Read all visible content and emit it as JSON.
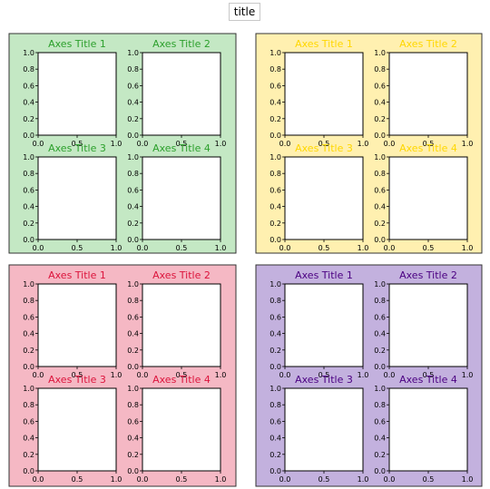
{
  "figure_title": "title",
  "chart_data": [
    {
      "type": "empty-axes-grid",
      "panel": "top-left",
      "background_color": "#c4e8c4",
      "title_color": "#2ca02c",
      "axes": [
        {
          "title": "Axes Title 1",
          "xlim": [
            0.0,
            1.0
          ],
          "ylim": [
            0.0,
            1.0
          ],
          "xticks": [
            "0.0",
            "0.5",
            "1.0"
          ],
          "yticks": [
            "0.0",
            "0.2",
            "0.4",
            "0.6",
            "0.8",
            "1.0"
          ]
        },
        {
          "title": "Axes Title 2",
          "xlim": [
            0.0,
            1.0
          ],
          "ylim": [
            0.0,
            1.0
          ],
          "xticks": [
            "0.0",
            "0.5",
            "1.0"
          ],
          "yticks": [
            "0.0",
            "0.2",
            "0.4",
            "0.6",
            "0.8",
            "1.0"
          ]
        },
        {
          "title": "Axes Title 3",
          "xlim": [
            0.0,
            1.0
          ],
          "ylim": [
            0.0,
            1.0
          ],
          "xticks": [
            "0.0",
            "0.5",
            "1.0"
          ],
          "yticks": [
            "0.0",
            "0.2",
            "0.4",
            "0.6",
            "0.8",
            "1.0"
          ]
        },
        {
          "title": "Axes Title 4",
          "xlim": [
            0.0,
            1.0
          ],
          "ylim": [
            0.0,
            1.0
          ],
          "xticks": [
            "0.0",
            "0.5",
            "1.0"
          ],
          "yticks": [
            "0.0",
            "0.2",
            "0.4",
            "0.6",
            "0.8",
            "1.0"
          ]
        }
      ]
    },
    {
      "type": "empty-axes-grid",
      "panel": "top-right",
      "background_color": "#fff0b0",
      "title_color": "#ffd700",
      "axes": [
        {
          "title": "Axes Title 1",
          "xlim": [
            0.0,
            1.0
          ],
          "ylim": [
            0.0,
            1.0
          ],
          "xticks": [
            "0.0",
            "0.5",
            "1.0"
          ],
          "yticks": [
            "0.0",
            "0.2",
            "0.4",
            "0.6",
            "0.8",
            "1.0"
          ]
        },
        {
          "title": "Axes Title 2",
          "xlim": [
            0.0,
            1.0
          ],
          "ylim": [
            0.0,
            1.0
          ],
          "xticks": [
            "0.0",
            "0.5",
            "1.0"
          ],
          "yticks": [
            "0.0",
            "0.2",
            "0.4",
            "0.6",
            "0.8",
            "1.0"
          ]
        },
        {
          "title": "Axes Title 3",
          "xlim": [
            0.0,
            1.0
          ],
          "ylim": [
            0.0,
            1.0
          ],
          "xticks": [
            "0.0",
            "0.5",
            "1.0"
          ],
          "yticks": [
            "0.0",
            "0.2",
            "0.4",
            "0.6",
            "0.8",
            "1.0"
          ]
        },
        {
          "title": "Axes Title 4",
          "xlim": [
            0.0,
            1.0
          ],
          "ylim": [
            0.0,
            1.0
          ],
          "xticks": [
            "0.0",
            "0.5",
            "1.0"
          ],
          "yticks": [
            "0.0",
            "0.2",
            "0.4",
            "0.6",
            "0.8",
            "1.0"
          ]
        }
      ]
    },
    {
      "type": "empty-axes-grid",
      "panel": "bottom-left",
      "background_color": "#f5b8c4",
      "title_color": "#dc143c",
      "axes": [
        {
          "title": "Axes Title 1",
          "xlim": [
            0.0,
            1.0
          ],
          "ylim": [
            0.0,
            1.0
          ],
          "xticks": [
            "0.0",
            "0.5",
            "1.0"
          ],
          "yticks": [
            "0.0",
            "0.2",
            "0.4",
            "0.6",
            "0.8",
            "1.0"
          ]
        },
        {
          "title": "Axes Title 2",
          "xlim": [
            0.0,
            1.0
          ],
          "ylim": [
            0.0,
            1.0
          ],
          "xticks": [
            "0.0",
            "0.5",
            "1.0"
          ],
          "yticks": [
            "0.0",
            "0.2",
            "0.4",
            "0.6",
            "0.8",
            "1.0"
          ]
        },
        {
          "title": "Axes Title 3",
          "xlim": [
            0.0,
            1.0
          ],
          "ylim": [
            0.0,
            1.0
          ],
          "xticks": [
            "0.0",
            "0.5",
            "1.0"
          ],
          "yticks": [
            "0.0",
            "0.2",
            "0.4",
            "0.6",
            "0.8",
            "1.0"
          ]
        },
        {
          "title": "Axes Title 4",
          "xlim": [
            0.0,
            1.0
          ],
          "ylim": [
            0.0,
            1.0
          ],
          "xticks": [
            "0.0",
            "0.5",
            "1.0"
          ],
          "yticks": [
            "0.0",
            "0.2",
            "0.4",
            "0.6",
            "0.8",
            "1.0"
          ]
        }
      ]
    },
    {
      "type": "empty-axes-grid",
      "panel": "bottom-right",
      "background_color": "#c3b1de",
      "title_color": "#4b0082",
      "axes": [
        {
          "title": "Axes Title 1",
          "xlim": [
            0.0,
            1.0
          ],
          "ylim": [
            0.0,
            1.0
          ],
          "xticks": [
            "0.0",
            "0.5",
            "1.0"
          ],
          "yticks": [
            "0.0",
            "0.2",
            "0.4",
            "0.6",
            "0.8",
            "1.0"
          ]
        },
        {
          "title": "Axes Title 2",
          "xlim": [
            0.0,
            1.0
          ],
          "ylim": [
            0.0,
            1.0
          ],
          "xticks": [
            "0.0",
            "0.5",
            "1.0"
          ],
          "yticks": [
            "0.0",
            "0.2",
            "0.4",
            "0.6",
            "0.8",
            "1.0"
          ]
        },
        {
          "title": "Axes Title 3",
          "xlim": [
            0.0,
            1.0
          ],
          "ylim": [
            0.0,
            1.0
          ],
          "xticks": [
            "0.0",
            "0.5",
            "1.0"
          ],
          "yticks": [
            "0.0",
            "0.2",
            "0.4",
            "0.6",
            "0.8",
            "1.0"
          ]
        },
        {
          "title": "Axes Title 4",
          "xlim": [
            0.0,
            1.0
          ],
          "ylim": [
            0.0,
            1.0
          ],
          "xticks": [
            "0.0",
            "0.5",
            "1.0"
          ],
          "yticks": [
            "0.0",
            "0.2",
            "0.4",
            "0.6",
            "0.8",
            "1.0"
          ]
        }
      ]
    }
  ]
}
